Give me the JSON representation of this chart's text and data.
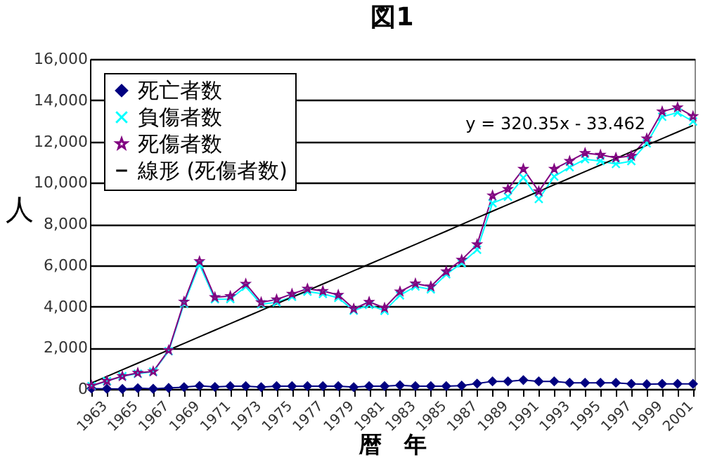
{
  "chart_data": {
    "type": "line",
    "title": "図1",
    "xlabel": "暦　年",
    "ylabel": "人",
    "categories": [
      "1963",
      null,
      "1965",
      null,
      "1967",
      null,
      "1969",
      null,
      "1971",
      null,
      "1973",
      null,
      "1975",
      null,
      "1977",
      null,
      "1979",
      null,
      "1981",
      null,
      "1983",
      null,
      "1985",
      null,
      "1987",
      null,
      "1989",
      null,
      "1991",
      null,
      "1993",
      null,
      "1995",
      null,
      "1997",
      null,
      "1999",
      null,
      "2001",
      null
    ],
    "series": [
      {
        "name": "死亡者数",
        "color": "#000080",
        "marker": "diamond",
        "values": [
          20,
          10,
          0,
          40,
          10,
          50,
          90,
          150,
          100,
          140,
          140,
          90,
          140,
          140,
          140,
          140,
          140,
          90,
          140,
          140,
          180,
          140,
          140,
          140,
          160,
          260,
          370,
          370,
          430,
          370,
          370,
          300,
          300,
          300,
          300,
          250,
          230,
          250,
          250,
          250
        ]
      },
      {
        "name": "負傷者数",
        "color": "#00ffff",
        "marker": "cross",
        "values": [
          140,
          380,
          620,
          740,
          840,
          1830,
          4140,
          6040,
          4350,
          4360,
          4960,
          4110,
          4200,
          4470,
          4720,
          4610,
          4420,
          3800,
          4080,
          3790,
          4540,
          4970,
          4830,
          5560,
          6100,
          6750,
          9010,
          9320,
          10240,
          9210,
          10300,
          10750,
          11140,
          11050,
          10910,
          11050,
          11910,
          13200,
          13400,
          12970
        ]
      },
      {
        "name": "死傷者数",
        "color": "#800080",
        "marker": "star",
        "values": [
          160,
          390,
          620,
          780,
          850,
          1880,
          4230,
          6190,
          4450,
          4500,
          5100,
          4200,
          4340,
          4610,
          4860,
          4750,
          4560,
          3890,
          4220,
          3930,
          4720,
          5110,
          4970,
          5700,
          6260,
          7010,
          9380,
          9690,
          10670,
          9580,
          10670,
          11050,
          11440,
          11350,
          11210,
          11300,
          12140,
          13450,
          13650,
          13220
        ]
      },
      {
        "name": "線形 (死傷者数)",
        "color": "#000000",
        "marker": "none",
        "values": [
          290,
          610,
          930,
          1250,
          1570,
          1890,
          2210,
          2530,
          2850,
          3170,
          3490,
          3810,
          4130,
          4450,
          4770,
          5090,
          5410,
          5730,
          6050,
          6370,
          6690,
          7010,
          7330,
          7650,
          7980,
          8300,
          8620,
          8940,
          9260,
          9580,
          9900,
          10220,
          10540,
          10860,
          11180,
          11500,
          11820,
          12140,
          12460,
          12780
        ]
      }
    ],
    "annotations": [
      "y = 320.35x - 33.462"
    ],
    "ylim": [
      0,
      16000
    ],
    "yticks": [
      0,
      {
        "value": 2000,
        "label": "2,000"
      },
      {
        "value": 4000,
        "label": "4,000"
      },
      {
        "value": 6000,
        "label": "6,000"
      },
      {
        "value": 8000,
        "label": "8,000"
      },
      {
        "value": 10000,
        "label": "10,000"
      },
      {
        "value": 12000,
        "label": "12,000"
      },
      {
        "value": 14000,
        "label": "14,000"
      },
      {
        "value": 16000,
        "label": "16,000"
      }
    ],
    "grid": "y",
    "legend": "top left"
  }
}
